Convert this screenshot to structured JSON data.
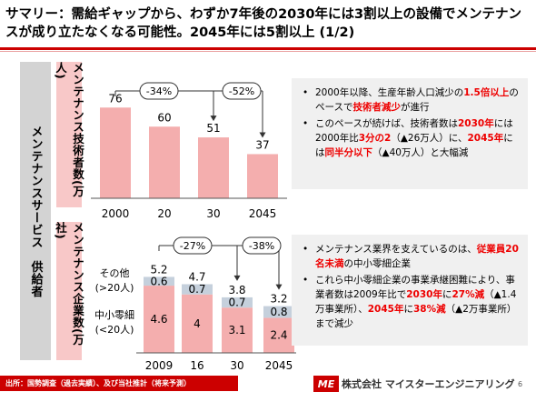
{
  "title": "サマリー：需給ギャップから、わずか7年後の2030年には3割以上の設備でメンテナンスが成り立たなくなる可能性。2045年には5割以上 (1/2)",
  "left_band_label": "メンテナンスサービス　供給者",
  "panel1": {
    "band_label": "メンテナンス技術者数(万人)",
    "bullets": [
      [
        {
          "t": "2000年以降、生産年齢人口減少の"
        },
        {
          "t": "1.5倍以上",
          "hl": true
        },
        {
          "t": "のペースで"
        },
        {
          "t": "技術者減少",
          "hl": true
        },
        {
          "t": "が進行"
        }
      ],
      [
        {
          "t": "このペースが続けば、技術者数は"
        },
        {
          "t": "2030年",
          "hl": true
        },
        {
          "t": "には2000年比"
        },
        {
          "t": "3分の2",
          "hl": true
        },
        {
          "t": "（▲26万人）に、"
        },
        {
          "t": "2045年",
          "hl": true
        },
        {
          "t": "には"
        },
        {
          "t": "同半分以下",
          "hl": true
        },
        {
          "t": "（▲40万人）と大幅減"
        }
      ]
    ]
  },
  "panel2": {
    "band_label": "メンテナンス企業数(万社)",
    "bullets": [
      [
        {
          "t": "メンテナンス業界を支えているのは、"
        },
        {
          "t": "従業員20名未満",
          "hl": true
        },
        {
          "t": "の中小零細企業"
        }
      ],
      [
        {
          "t": "これら中小零細企業の事業承継困難により、事業者数は2009年比で"
        },
        {
          "t": "2030年",
          "hl": true
        },
        {
          "t": "に"
        },
        {
          "t": "27%減",
          "hl": true
        },
        {
          "t": "（▲1.4万事業所）、"
        },
        {
          "t": "2045年",
          "hl": true
        },
        {
          "t": "に"
        },
        {
          "t": "38%減",
          "hl": true
        },
        {
          "t": "（▲2万事業所）まで減少"
        }
      ]
    ]
  },
  "chart_data": [
    {
      "type": "bar",
      "categories": [
        "2000",
        "20",
        "30",
        "2045"
      ],
      "values": [
        76,
        60,
        51,
        37
      ],
      "ylim": [
        0,
        80
      ],
      "colors": {
        "bar": "#f4aeae"
      },
      "annotations": [
        {
          "text": "-34%",
          "from": "2000",
          "to": "30"
        },
        {
          "text": "-52%",
          "from": "2000",
          "to": "2045"
        }
      ]
    },
    {
      "type": "bar",
      "stacked": true,
      "categories": [
        "2009",
        "16",
        "30",
        "2045"
      ],
      "series": [
        {
          "name": "中小零細\n(<20人)",
          "values": [
            4.6,
            4.0,
            3.1,
            2.4
          ],
          "color": "#f4aeae"
        },
        {
          "name": "その他\n(>20人)",
          "values": [
            0.6,
            0.7,
            0.7,
            0.8
          ],
          "color": "#c5d0dc"
        }
      ],
      "totals": [
        5.2,
        4.7,
        3.8,
        3.2
      ],
      "ylim": [
        0,
        5.6
      ],
      "annotations": [
        {
          "text": "-27%",
          "from": "2009",
          "to": "30"
        },
        {
          "text": "-38%",
          "from": "2009",
          "to": "2045"
        }
      ]
    }
  ],
  "footer": {
    "source": "出所：国勢調査（過去実績）、及び当社推計（将来予測）",
    "logo": "ME",
    "company": "株式会社 マイスターエンジニアリング",
    "page": "6"
  }
}
